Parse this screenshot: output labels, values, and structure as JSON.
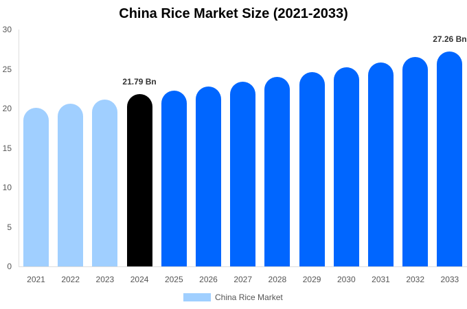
{
  "chart_data": {
    "type": "bar",
    "title": "China Rice Market Size (2021-2033)",
    "xlabel": "",
    "ylabel": "",
    "ylim": [
      0,
      30
    ],
    "yticks": [
      0,
      5,
      10,
      15,
      20,
      25,
      30
    ],
    "categories": [
      "2021",
      "2022",
      "2023",
      "2024",
      "2025",
      "2026",
      "2027",
      "2028",
      "2029",
      "2030",
      "2031",
      "2032",
      "2033"
    ],
    "series": [
      {
        "name": "China Rice Market",
        "values": [
          20.1,
          20.6,
          21.1,
          21.79,
          22.3,
          22.8,
          23.4,
          24.0,
          24.6,
          25.2,
          25.8,
          26.5,
          27.26
        ]
      }
    ],
    "bar_colors": [
      "#a0cfff",
      "#a0cfff",
      "#a0cfff",
      "#000000",
      "#0066ff",
      "#0066ff",
      "#0066ff",
      "#0066ff",
      "#0066ff",
      "#0066ff",
      "#0066ff",
      "#0066ff",
      "#0066ff"
    ],
    "annotations": [
      {
        "category": "2024",
        "text": "21.79 Bn"
      },
      {
        "category": "2033",
        "text": "27.26 Bn"
      }
    ],
    "legend": {
      "position": "bottom",
      "label": "China Rice Market",
      "color": "#a0cfff"
    },
    "grid": false
  }
}
